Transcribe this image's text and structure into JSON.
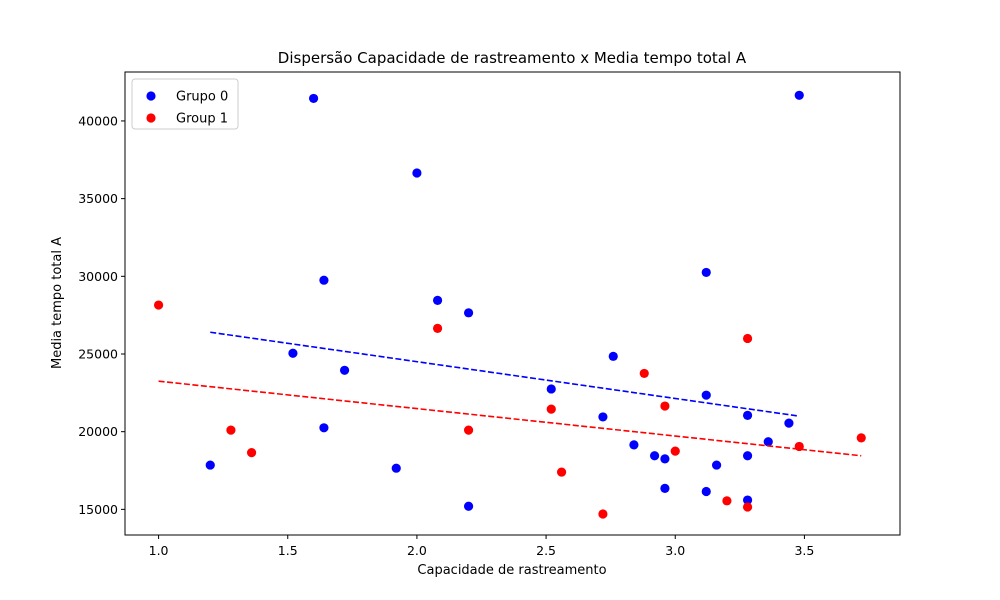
{
  "chart_data": {
    "type": "scatter",
    "title": "Dispersão Capacidade de rastreamento x Media tempo total A",
    "xlabel": "Capacidade de rastreamento",
    "ylabel": "Media tempo total A",
    "xlim": [
      0.87,
      3.87
    ],
    "ylim": [
      13350,
      43150
    ],
    "xticks": [
      1.0,
      1.5,
      2.0,
      2.5,
      3.0,
      3.5
    ],
    "xtick_labels": [
      "1.0",
      "1.5",
      "2.0",
      "2.5",
      "3.0",
      "3.5"
    ],
    "yticks": [
      15000,
      20000,
      25000,
      30000,
      35000,
      40000
    ],
    "ytick_labels": [
      "15000",
      "20000",
      "25000",
      "30000",
      "35000",
      "40000"
    ],
    "grid": false,
    "legend_position": "top-left",
    "series": [
      {
        "name": "Grupo 0",
        "color": "#0000ff",
        "points": [
          [
            1.2,
            17850
          ],
          [
            1.52,
            25050
          ],
          [
            1.6,
            41450
          ],
          [
            1.64,
            29750
          ],
          [
            1.64,
            20250
          ],
          [
            1.72,
            23950
          ],
          [
            1.92,
            17650
          ],
          [
            2.0,
            36650
          ],
          [
            2.08,
            28450
          ],
          [
            2.2,
            27650
          ],
          [
            2.2,
            15200
          ],
          [
            2.52,
            22750
          ],
          [
            2.72,
            20950
          ],
          [
            2.76,
            24850
          ],
          [
            2.84,
            19150
          ],
          [
            2.92,
            18450
          ],
          [
            2.96,
            18250
          ],
          [
            2.96,
            16350
          ],
          [
            3.12,
            30250
          ],
          [
            3.12,
            22350
          ],
          [
            3.12,
            16150
          ],
          [
            3.16,
            17850
          ],
          [
            3.28,
            21050
          ],
          [
            3.28,
            18450
          ],
          [
            3.28,
            15600
          ],
          [
            3.36,
            19350
          ],
          [
            3.44,
            20550
          ],
          [
            3.48,
            41650
          ]
        ],
        "trend": {
          "x": [
            1.2,
            3.48
          ],
          "y": [
            26400,
            21000
          ]
        }
      },
      {
        "name": "Group 1",
        "color": "#ff0000",
        "points": [
          [
            1.0,
            28150
          ],
          [
            1.28,
            20100
          ],
          [
            1.36,
            18650
          ],
          [
            2.08,
            26650
          ],
          [
            2.2,
            20100
          ],
          [
            2.52,
            21450
          ],
          [
            2.56,
            17400
          ],
          [
            2.72,
            14700
          ],
          [
            2.88,
            23750
          ],
          [
            2.96,
            21650
          ],
          [
            3.0,
            18750
          ],
          [
            3.2,
            15550
          ],
          [
            3.28,
            26000
          ],
          [
            3.28,
            15150
          ],
          [
            3.48,
            19050
          ],
          [
            3.72,
            19600
          ]
        ],
        "trend": {
          "x": [
            1.0,
            3.72
          ],
          "y": [
            23250,
            18450
          ]
        }
      }
    ]
  }
}
